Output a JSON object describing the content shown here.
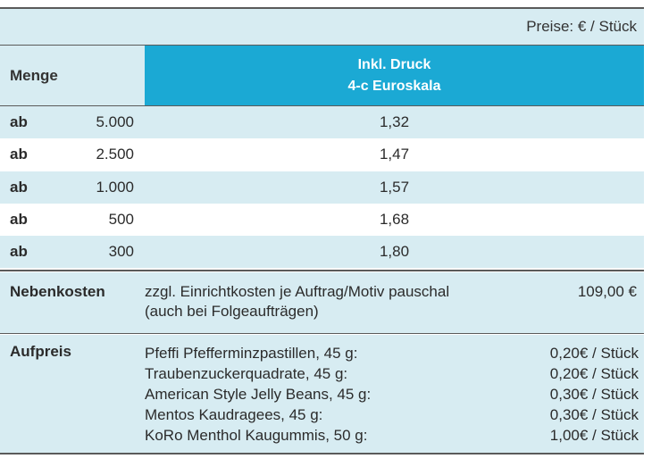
{
  "price_note": "Preise: € / Stück",
  "header": {
    "menge": "Menge",
    "column_line1": "Inkl. Druck",
    "column_line2": "4-c Euroskala"
  },
  "rows": [
    {
      "prefix": "ab",
      "qty": "5.000",
      "price": "1,32"
    },
    {
      "prefix": "ab",
      "qty": "2.500",
      "price": "1,47"
    },
    {
      "prefix": "ab",
      "qty": "1.000",
      "price": "1,57"
    },
    {
      "prefix": "ab",
      "qty": "500",
      "price": "1,68"
    },
    {
      "prefix": "ab",
      "qty": "300",
      "price": "1,80"
    }
  ],
  "nebenkosten": {
    "label": "Nebenkosten",
    "text_line1": "zzgl. Einrichtkosten je Auftrag/Motiv pauschal",
    "text_line2": "(auch bei Folgeaufträgen)",
    "amount": "109,00 €"
  },
  "aufpreis": {
    "label": "Aufpreis",
    "items": [
      {
        "name": "Pfeffi Pfefferminzpastillen, 45 g:",
        "price": "0,20€ / Stück"
      },
      {
        "name": "Traubenzuckerquadrate, 45 g:",
        "price": "0,20€ / Stück"
      },
      {
        "name": "American Style Jelly Beans, 45 g:",
        "price": "0,30€ / Stück"
      },
      {
        "name": "Mentos Kaudragees, 45 g:",
        "price": "0,30€ / Stück"
      },
      {
        "name": "KoRo Menthol Kaugummis, 50 g:",
        "price": "1,00€ / Stück"
      }
    ]
  },
  "colors": {
    "light_blue": "#d7ecf2",
    "header_blue": "#1ba9d4",
    "rule": "#5a5a5a"
  }
}
